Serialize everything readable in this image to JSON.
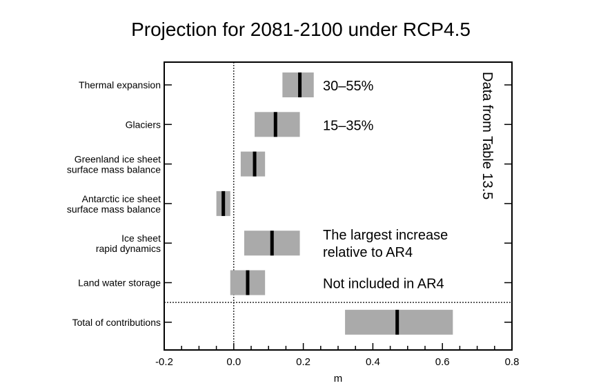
{
  "chart_data": {
    "type": "bar",
    "subtype": "horizontal range bars with median",
    "title": "Projection for 2081-2100 under RCP4.5",
    "xlabel": "m",
    "ylabel": "",
    "xlim": [
      -0.2,
      0.8
    ],
    "xticks": [
      "-0.2",
      "0.0",
      "0.2",
      "0.4",
      "0.6",
      "0.8"
    ],
    "grid": false,
    "zero_line": "dotted",
    "categories": [
      [
        "Thermal expansion"
      ],
      [
        "Glaciers"
      ],
      [
        "Greenland ice sheet",
        "surface mass balance"
      ],
      [
        "Antarctic ice sheet",
        "surface mass balance"
      ],
      [
        "Ice sheet",
        "rapid dynamics"
      ],
      [
        "Land water storage"
      ],
      [
        "Total of contributions"
      ]
    ],
    "series": [
      {
        "low": [
          0.14,
          0.06,
          0.02,
          -0.05,
          0.03,
          -0.01,
          0.32
        ],
        "median": [
          0.19,
          0.12,
          0.06,
          -0.03,
          0.11,
          0.04,
          0.47
        ],
        "high": [
          0.23,
          0.19,
          0.09,
          -0.01,
          0.19,
          0.09,
          0.63
        ]
      }
    ],
    "separator_before": "Total of contributions",
    "annotations": [
      {
        "row": 0,
        "lines": [
          "30–55%"
        ]
      },
      {
        "row": 1,
        "lines": [
          "15–35%"
        ]
      },
      {
        "row": 4,
        "lines": [
          "The largest increase",
          "relative to AR4"
        ]
      },
      {
        "row": 5,
        "lines": [
          "Not included in AR4"
        ]
      }
    ],
    "side_note": "Data from Table 13.5",
    "colors": {
      "bar": "#aaaaaa",
      "median": "#000000"
    }
  }
}
